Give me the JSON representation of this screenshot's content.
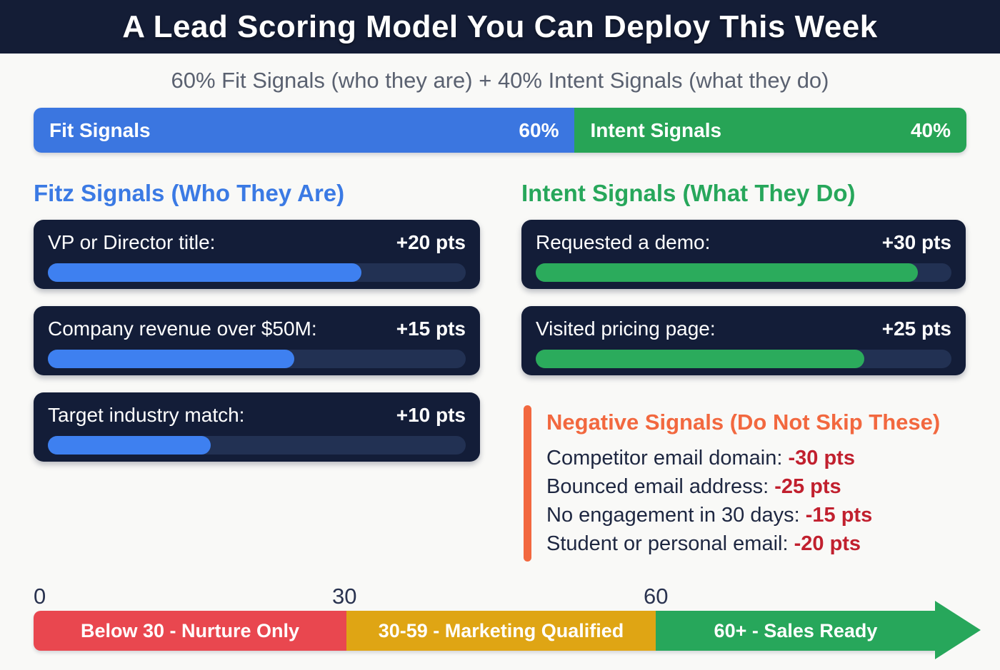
{
  "header": {
    "title": "A Lead Scoring Model You Can Deploy This Week",
    "bg_color": "#141d36"
  },
  "subtitle": "60% Fit Signals (who they are) + 40% Intent Signals (what they do)",
  "weight_bar": {
    "fit": {
      "label": "Fit Signals",
      "value": "60%",
      "color": "#3b76e0",
      "width_pct": 58
    },
    "intent": {
      "label": "Intent Signals",
      "value": "40%",
      "color": "#27a456",
      "width_pct": 42
    }
  },
  "fit_section": {
    "heading": "Fitz Signals (Who They Are)",
    "heading_color": "#3b7ae4",
    "bar_color": "#3e80f0",
    "items": [
      {
        "label": "VP or Director title:",
        "points": "+20 pts",
        "fill_pct": 75
      },
      {
        "label": "Company revenue over $50M:",
        "points": "+15 pts",
        "fill_pct": 59
      },
      {
        "label": "Target industry match:",
        "points": "+10 pts",
        "fill_pct": 39
      }
    ]
  },
  "intent_section": {
    "heading": "Intent Signals (What They Do)",
    "heading_color": "#27a75b",
    "bar_color": "#2bab5c",
    "items": [
      {
        "label": "Requested a demo:",
        "points": "+30 pts",
        "fill_pct": 92
      },
      {
        "label": "Visited pricing page:",
        "points": "+25 pts",
        "fill_pct": 79
      }
    ]
  },
  "negative_section": {
    "heading": "Negative Signals (Do Not Skip These)",
    "accent_color": "#f2683f",
    "points_color": "#c1202e",
    "items": [
      {
        "label": "Competitor email domain:",
        "points": "-30 pts"
      },
      {
        "label": "Bounced email address:",
        "points": "-25 pts"
      },
      {
        "label": "No engagement in 30 days:",
        "points": "-15 pts"
      },
      {
        "label": "Student or personal email:",
        "points": "-20 pts"
      }
    ]
  },
  "scale": {
    "ticks": [
      "0",
      "30",
      "60"
    ],
    "segments": [
      {
        "label": "Below 30 - Nurture Only",
        "color": "#e9474f"
      },
      {
        "label": "30-59 - Marketing Qualified",
        "color": "#dfa514"
      },
      {
        "label": "60+ - Sales Ready",
        "color": "#27a75b"
      }
    ]
  }
}
